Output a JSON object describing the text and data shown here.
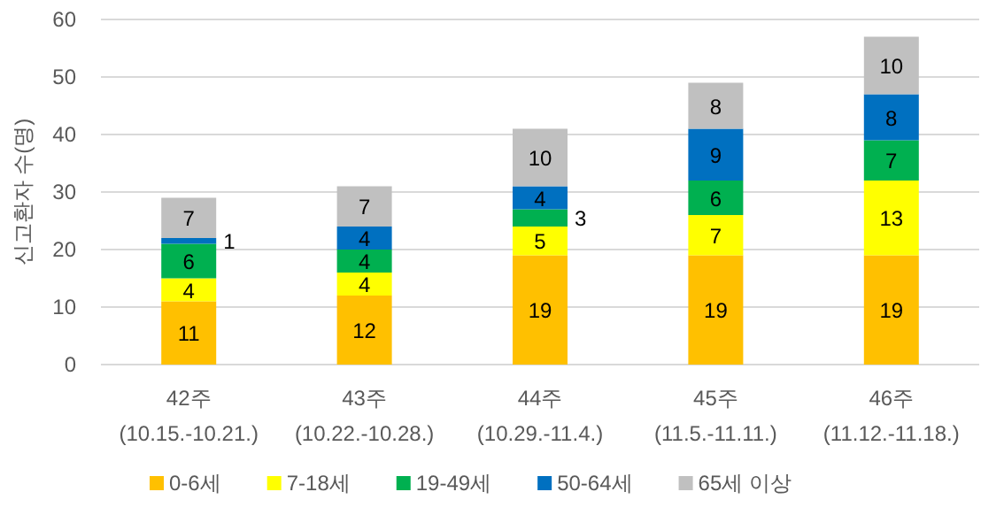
{
  "chart_data": {
    "type": "bar",
    "stacked": true,
    "ylabel": "신고환자 수(명)",
    "categories": [
      "42주\n(10.15.-10.21.)",
      "43주\n(10.22.-10.28.)",
      "44주\n(10.29.-11.4.)",
      "45주\n(11.5.-11.11.)",
      "46주\n(11.12.-11.18.)"
    ],
    "series": [
      {
        "name": "0-6세",
        "color": "#ffc000",
        "values": [
          11,
          12,
          19,
          19,
          19
        ]
      },
      {
        "name": "7-18세",
        "color": "#ffff00",
        "values": [
          4,
          4,
          5,
          7,
          13
        ]
      },
      {
        "name": "19-49세",
        "color": "#00b050",
        "values": [
          6,
          4,
          3,
          6,
          7
        ]
      },
      {
        "name": "50-64세",
        "color": "#0070c0",
        "values": [
          1,
          4,
          4,
          9,
          8
        ]
      },
      {
        "name": "65세 이상",
        "color": "#c0c0c0",
        "values": [
          7,
          7,
          10,
          8,
          10
        ]
      }
    ],
    "ylim": [
      0,
      60
    ],
    "yticks": [
      0,
      10,
      20,
      30,
      40,
      50,
      60
    ],
    "grid": "y",
    "legend": "bottom",
    "data_labels": true
  }
}
